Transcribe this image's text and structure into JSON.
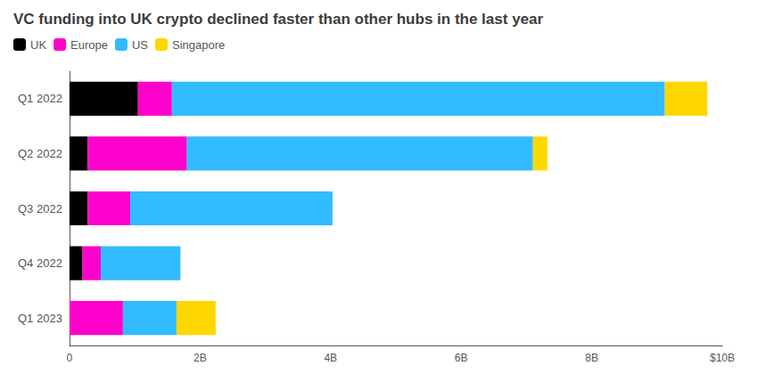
{
  "chart_data": {
    "type": "bar",
    "orientation": "horizontal",
    "stacked": true,
    "title": "VC funding into UK crypto declined faster than other hubs in the last year",
    "categories": [
      "Q1 2022",
      "Q2 2022",
      "Q3 2022",
      "Q4 2022",
      "Q1 2023"
    ],
    "series": [
      {
        "name": "UK",
        "color": "#000000",
        "values": [
          1.05,
          0.28,
          0.28,
          0.2,
          0.0
        ]
      },
      {
        "name": "Europe",
        "color": "#FF00CC",
        "values": [
          0.52,
          1.52,
          0.65,
          0.28,
          0.82
        ]
      },
      {
        "name": "US",
        "color": "#33BBFF",
        "values": [
          7.55,
          5.3,
          3.1,
          1.22,
          0.82
        ]
      },
      {
        "name": "Singapore",
        "color": "#FFD700",
        "values": [
          0.65,
          0.22,
          0.0,
          0.0,
          0.6
        ]
      }
    ],
    "xlim": [
      0,
      10
    ],
    "xticks": [
      0,
      {
        "value": 2,
        "label": "2B"
      },
      {
        "value": 4,
        "label": "4B"
      },
      {
        "value": 6,
        "label": "6B"
      },
      {
        "value": 8,
        "label": "8B"
      },
      {
        "value": 10,
        "label": "$10B"
      }
    ],
    "grid": false,
    "legend": "upper left"
  }
}
